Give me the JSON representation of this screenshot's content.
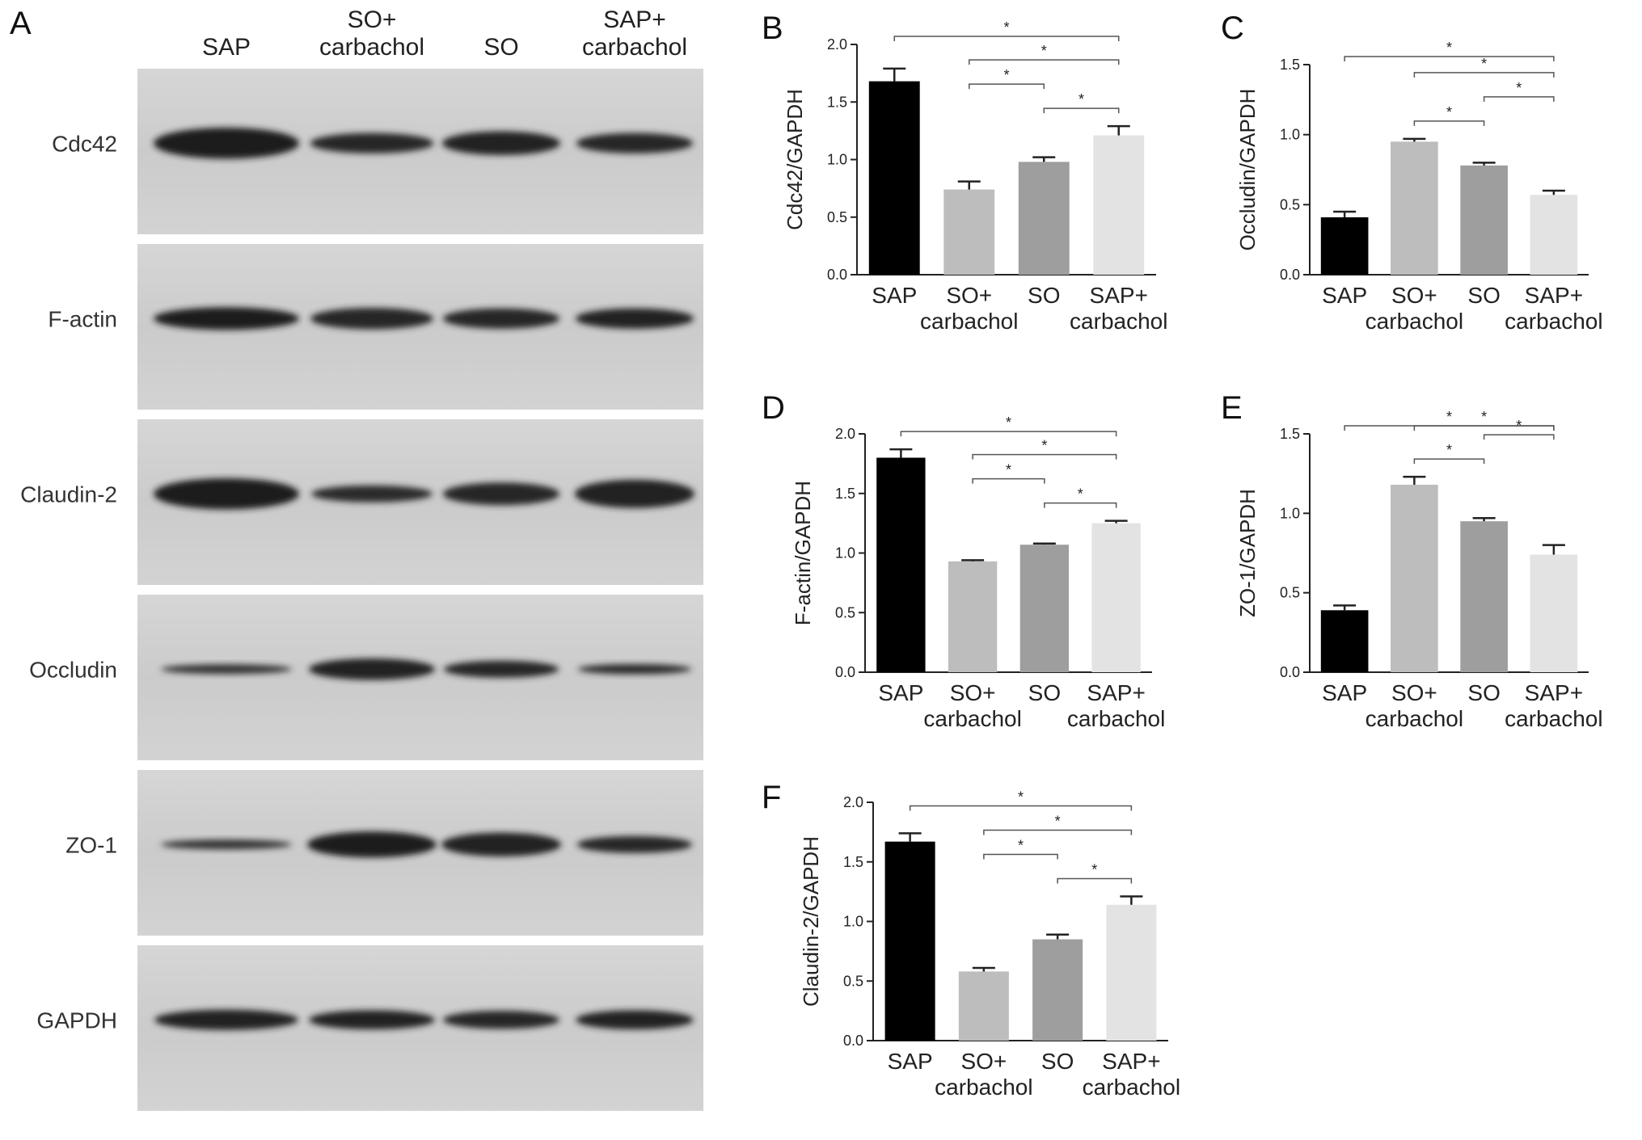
{
  "blot": {
    "letter": "A",
    "lanes": [
      [
        "SAP"
      ],
      [
        "SO+",
        "carbachol"
      ],
      [
        "SO"
      ],
      [
        "SAP+",
        "carbachol"
      ]
    ],
    "rows": [
      {
        "label": "Cdc42",
        "bands": [
          1.0,
          0.82,
          0.9,
          0.85
        ],
        "thick": [
          0.55,
          0.36,
          0.42,
          0.36
        ]
      },
      {
        "label": "F-actin",
        "bands": [
          1.0,
          0.8,
          0.85,
          0.9
        ],
        "thick": [
          0.4,
          0.38,
          0.36,
          0.36
        ]
      },
      {
        "label": "Claudin-2",
        "bands": [
          1.0,
          0.75,
          0.85,
          0.95
        ],
        "thick": [
          0.55,
          0.3,
          0.4,
          0.5
        ]
      },
      {
        "label": "Occludin",
        "bands": [
          0.6,
          0.9,
          0.8,
          0.75
        ],
        "thick": [
          0.12,
          0.38,
          0.3,
          0.18
        ]
      },
      {
        "label": "ZO-1",
        "bands": [
          0.6,
          1.0,
          0.95,
          0.8
        ],
        "thick": [
          0.14,
          0.46,
          0.42,
          0.3
        ]
      },
      {
        "label": "GAPDH",
        "bands": [
          0.95,
          0.9,
          0.85,
          0.88
        ],
        "thick": [
          0.36,
          0.34,
          0.32,
          0.34
        ]
      }
    ]
  },
  "chart_data": [
    {
      "letter": "B",
      "type": "bar",
      "categories": [
        [
          "SAP"
        ],
        [
          "SO+",
          "carbachol"
        ],
        [
          "SO"
        ],
        [
          "SAP+",
          "carbachol"
        ]
      ],
      "values": [
        1.68,
        0.74,
        0.98,
        1.21
      ],
      "errors": [
        0.11,
        0.07,
        0.04,
        0.08
      ],
      "ylabel": "Cdc42/GAPDH",
      "ylim": [
        0,
        2.0
      ],
      "yticks": [
        "0.0",
        "0.5",
        "1.0",
        "1.5",
        "2.0"
      ],
      "brackets": [
        [
          0,
          3,
          "*"
        ],
        [
          1,
          3,
          "*"
        ],
        [
          2,
          3,
          "*"
        ],
        [
          1,
          2,
          "*"
        ]
      ]
    },
    {
      "letter": "C",
      "type": "bar",
      "categories": [
        [
          "SAP"
        ],
        [
          "SO+",
          "carbachol"
        ],
        [
          "SO"
        ],
        [
          "SAP+",
          "carbachol"
        ]
      ],
      "values": [
        0.41,
        0.95,
        0.78,
        0.57
      ],
      "errors": [
        0.04,
        0.02,
        0.02,
        0.03
      ],
      "ylabel": "Occludin/GAPDH",
      "ylim": [
        0,
        1.5
      ],
      "yticks": [
        "0.0",
        "0.5",
        "1.0",
        "1.5"
      ],
      "brackets": [
        [
          0,
          3,
          "*"
        ],
        [
          1,
          3,
          "*"
        ],
        [
          1,
          2,
          "*"
        ],
        [
          2,
          3,
          "*"
        ]
      ]
    },
    {
      "letter": "D",
      "type": "bar",
      "categories": [
        [
          "SAP"
        ],
        [
          "SO+",
          "carbachol"
        ],
        [
          "SO"
        ],
        [
          "SAP+",
          "carbachol"
        ]
      ],
      "values": [
        1.8,
        0.93,
        1.07,
        1.25
      ],
      "errors": [
        0.07,
        0.01,
        0.01,
        0.02
      ],
      "ylabel": "F-actin/GAPDH",
      "ylim": [
        0,
        2.0
      ],
      "yticks": [
        "0.0",
        "0.5",
        "1.0",
        "1.5",
        "2.0"
      ],
      "brackets": [
        [
          0,
          3,
          "*"
        ],
        [
          1,
          3,
          "*"
        ],
        [
          2,
          3,
          "*"
        ],
        [
          1,
          2,
          "*"
        ]
      ]
    },
    {
      "letter": "E",
      "type": "bar",
      "categories": [
        [
          "SAP"
        ],
        [
          "SO+",
          "carbachol"
        ],
        [
          "SO"
        ],
        [
          "SAP+",
          "carbachol"
        ]
      ],
      "values": [
        0.39,
        1.18,
        0.95,
        0.74
      ],
      "errors": [
        0.03,
        0.05,
        0.02,
        0.06
      ],
      "ylabel": "ZO-1/GAPDH",
      "ylim": [
        0,
        1.5
      ],
      "yticks": [
        "0.0",
        "0.5",
        "1.0",
        "1.5"
      ],
      "brackets": [
        [
          0,
          3,
          "*"
        ],
        [
          1,
          3,
          "*"
        ],
        [
          1,
          2,
          "*"
        ],
        [
          2,
          3,
          "*"
        ]
      ]
    },
    {
      "letter": "F",
      "type": "bar",
      "categories": [
        [
          "SAP"
        ],
        [
          "SO+",
          "carbachol"
        ],
        [
          "SO"
        ],
        [
          "SAP+",
          "carbachol"
        ]
      ],
      "values": [
        1.67,
        0.58,
        0.85,
        1.14
      ],
      "errors": [
        0.07,
        0.03,
        0.04,
        0.07
      ],
      "ylabel": "Claudin-2/GAPDH",
      "ylim": [
        0,
        2.0
      ],
      "yticks": [
        "0.0",
        "0.5",
        "1.0",
        "1.5",
        "2.0"
      ],
      "brackets": [
        [
          0,
          3,
          "*"
        ],
        [
          1,
          3,
          "*"
        ],
        [
          2,
          3,
          "*"
        ],
        [
          1,
          2,
          "*"
        ]
      ]
    }
  ],
  "colors": {
    "bars": [
      "#000000",
      "#bdbdbd",
      "#9e9e9e",
      "#e3e3e3"
    ],
    "membrane": "#cfcfcf",
    "band": "#3a3a3a",
    "axis": "#222222"
  }
}
